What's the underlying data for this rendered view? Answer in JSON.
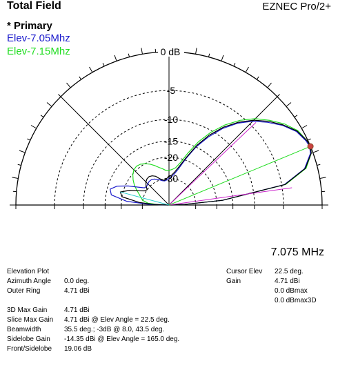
{
  "header": {
    "title": "Total Field",
    "brand": "EZNEC Pro/2+"
  },
  "legend": {
    "primary": "* Primary",
    "traces": [
      {
        "label": "Elev-7.05Mhz",
        "color": "#1a1acc"
      },
      {
        "label": "Elev-7.15Mhz",
        "color": "#22dd22"
      }
    ]
  },
  "frequency": "7.075 MHz",
  "colors": {
    "primary_trace": "#000000",
    "trace_705": "#1a1acc",
    "trace_715": "#22dd22",
    "cursor_line": "#22dd22",
    "beamwidth_lines": "#cc22cc",
    "slice_line": "#22cccc",
    "cursor_marker": "#cc4444"
  },
  "polar_plot": {
    "ring_labels": [
      "0 dB",
      "-5",
      "-10",
      "-15",
      "-20",
      "-30"
    ],
    "ring_levels_db": [
      0,
      -5,
      -10,
      -15,
      -20,
      -30
    ]
  },
  "chart_data": {
    "type": "polar-elevation",
    "outer_ring_dbi": 4.71,
    "series": [
      {
        "name": "* Primary",
        "points": [
          [
            0,
            -60
          ],
          [
            2,
            -40
          ],
          [
            5,
            -18
          ],
          [
            10,
            -4.5
          ],
          [
            15,
            -1.4
          ],
          [
            20,
            -0.2
          ],
          [
            22.5,
            0
          ],
          [
            25,
            -0.1
          ],
          [
            30,
            -0.6
          ],
          [
            35,
            -1.6
          ],
          [
            40,
            -2.8
          ],
          [
            45,
            -4.2
          ],
          [
            50,
            -6
          ],
          [
            55,
            -8.2
          ],
          [
            60,
            -11
          ],
          [
            65,
            -14.5
          ],
          [
            70,
            -19
          ],
          [
            75,
            -23
          ],
          [
            80,
            -26
          ],
          [
            85,
            -28
          ],
          [
            90,
            -29
          ],
          [
            95,
            -30
          ],
          [
            100,
            -31
          ],
          [
            105,
            -30.5
          ],
          [
            110,
            -29
          ],
          [
            115,
            -27
          ],
          [
            120,
            -26
          ],
          [
            125,
            -25.5
          ],
          [
            130,
            -25.7
          ],
          [
            135,
            -26.5
          ],
          [
            140,
            -28
          ],
          [
            145,
            -30
          ],
          [
            150,
            -29
          ],
          [
            155,
            -26
          ],
          [
            160,
            -22
          ],
          [
            165,
            -19.06
          ],
          [
            170,
            -20
          ],
          [
            175,
            -28
          ],
          [
            178,
            -40
          ],
          [
            180,
            -60
          ]
        ]
      },
      {
        "name": "Elev-7.05Mhz",
        "points": [
          [
            0,
            -60
          ],
          [
            2,
            -40
          ],
          [
            5,
            -18
          ],
          [
            10,
            -4.6
          ],
          [
            15,
            -1.5
          ],
          [
            20,
            -0.3
          ],
          [
            22.5,
            -0.1
          ],
          [
            25,
            -0.2
          ],
          [
            30,
            -0.7
          ],
          [
            35,
            -1.7
          ],
          [
            40,
            -3
          ],
          [
            45,
            -4.4
          ],
          [
            50,
            -6.2
          ],
          [
            55,
            -8.5
          ],
          [
            60,
            -11.5
          ],
          [
            65,
            -15
          ],
          [
            70,
            -19.5
          ],
          [
            75,
            -24
          ],
          [
            80,
            -27
          ],
          [
            85,
            -29
          ],
          [
            90,
            -30
          ],
          [
            95,
            -31
          ],
          [
            100,
            -31.5
          ],
          [
            105,
            -31
          ],
          [
            110,
            -30
          ],
          [
            115,
            -29
          ],
          [
            120,
            -28
          ],
          [
            125,
            -27.5
          ],
          [
            130,
            -27.5
          ],
          [
            135,
            -28
          ],
          [
            140,
            -28.5
          ],
          [
            145,
            -28
          ],
          [
            150,
            -25
          ],
          [
            155,
            -21
          ],
          [
            160,
            -17.5
          ],
          [
            165,
            -15.8
          ],
          [
            170,
            -16.5
          ],
          [
            175,
            -22
          ],
          [
            178,
            -35
          ],
          [
            180,
            -60
          ]
        ]
      },
      {
        "name": "Elev-7.15Mhz",
        "points": [
          [
            0,
            -60
          ],
          [
            2,
            -40
          ],
          [
            5,
            -18
          ],
          [
            10,
            -4.4
          ],
          [
            15,
            -1.3
          ],
          [
            20,
            -0.2
          ],
          [
            22.5,
            0
          ],
          [
            25,
            -0.1
          ],
          [
            30,
            -0.5
          ],
          [
            35,
            -1.4
          ],
          [
            40,
            -2.6
          ],
          [
            45,
            -3.9
          ],
          [
            50,
            -5.6
          ],
          [
            55,
            -7.7
          ],
          [
            60,
            -10.3
          ],
          [
            65,
            -13.5
          ],
          [
            70,
            -17.5
          ],
          [
            75,
            -21.5
          ],
          [
            80,
            -24
          ],
          [
            85,
            -25
          ],
          [
            90,
            -25.5
          ],
          [
            95,
            -25.5
          ],
          [
            100,
            -24.5
          ],
          [
            105,
            -23.5
          ],
          [
            110,
            -22.2
          ],
          [
            115,
            -21
          ],
          [
            120,
            -20
          ],
          [
            125,
            -19.3
          ],
          [
            130,
            -19
          ],
          [
            135,
            -19.3
          ],
          [
            140,
            -20.2
          ],
          [
            145,
            -21.5
          ],
          [
            150,
            -23
          ],
          [
            155,
            -25
          ],
          [
            160,
            -27
          ],
          [
            165,
            -28.5
          ],
          [
            170,
            -30
          ],
          [
            175,
            -34
          ],
          [
            178,
            -45
          ],
          [
            180,
            -60
          ]
        ]
      }
    ],
    "cursor_elev_deg": 22.5,
    "beamwidth_deg": [
      8.0,
      43.5
    ],
    "sidelobe_elev_deg": 165.0
  },
  "info": {
    "labels": [
      "Elevation Plot",
      "Azimuth Angle",
      "Outer Ring"
    ],
    "values": [
      "",
      "0.0 deg.",
      "4.71 dBi"
    ],
    "labels2": [
      "3D Max Gain",
      "Slice Max Gain",
      "Beamwidth",
      "Sidelobe Gain",
      "Front/Sidelobe"
    ],
    "values2": [
      "4.71 dBi",
      "4.71 dBi @ Elev Angle = 22.5 deg.",
      "35.5 deg.; -3dB @ 8.0, 43.5 deg.",
      "-14.35 dBi @ Elev Angle = 165.0 deg.",
      "19.06 dB"
    ],
    "cursor_labels": [
      "Cursor Elev",
      "Gain",
      "",
      ""
    ],
    "cursor_values": [
      "22.5 deg.",
      "4.71 dBi",
      "0.0 dBmax",
      "0.0 dBmax3D"
    ]
  }
}
